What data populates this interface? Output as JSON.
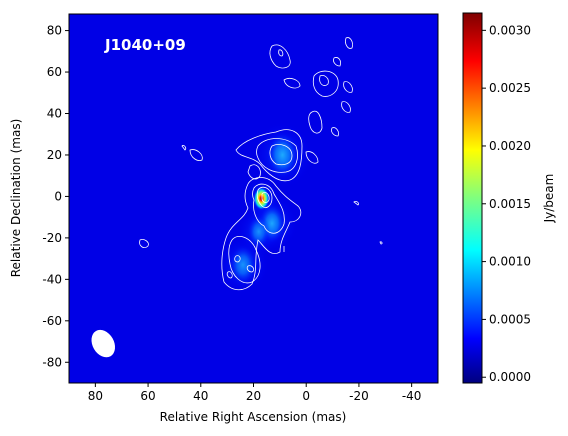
{
  "chart_data": {
    "type": "heatmap",
    "annotation": "J1040+09",
    "xlabel": "Relative Right Ascension (mas)",
    "ylabel": "Relative Declination (mas)",
    "xlim": [
      90,
      -50
    ],
    "ylim": [
      -90,
      88
    ],
    "xticks": [
      80,
      60,
      40,
      20,
      0,
      -20,
      -40
    ],
    "yticks": [
      80,
      60,
      40,
      20,
      0,
      -20,
      -40,
      -60,
      -80
    ],
    "colorbar": {
      "label": "Jy/beam",
      "range": [
        -5e-05,
        0.00315
      ],
      "ticks": [
        "0.0000",
        "0.0005",
        "0.0010",
        "0.0015",
        "0.0020",
        "0.0025",
        "0.0030"
      ],
      "tick_values": [
        0,
        0.0005,
        0.001,
        0.0015,
        0.002,
        0.0025,
        0.003
      ],
      "colormap": "jet"
    },
    "beam": {
      "x": 77,
      "y": -71,
      "major_mas": 6.5,
      "minor_mas": 4.5,
      "pa_deg": -30
    },
    "components": [
      {
        "x": 17,
        "y": -1,
        "peak": 0.0031,
        "size_mas": 2.2
      },
      {
        "x": 13,
        "y": -13,
        "peak": 0.0009,
        "size_mas": 3
      },
      {
        "x": 9,
        "y": 20,
        "peak": 0.00095,
        "size_mas": 3.5
      },
      {
        "x": 24,
        "y": -33,
        "peak": 0.00045,
        "size_mas": 3
      },
      {
        "x": 18,
        "y": -17,
        "peak": 0.0004,
        "size_mas": 2.5
      }
    ],
    "grid": false,
    "contour_color": "#ffffff"
  }
}
